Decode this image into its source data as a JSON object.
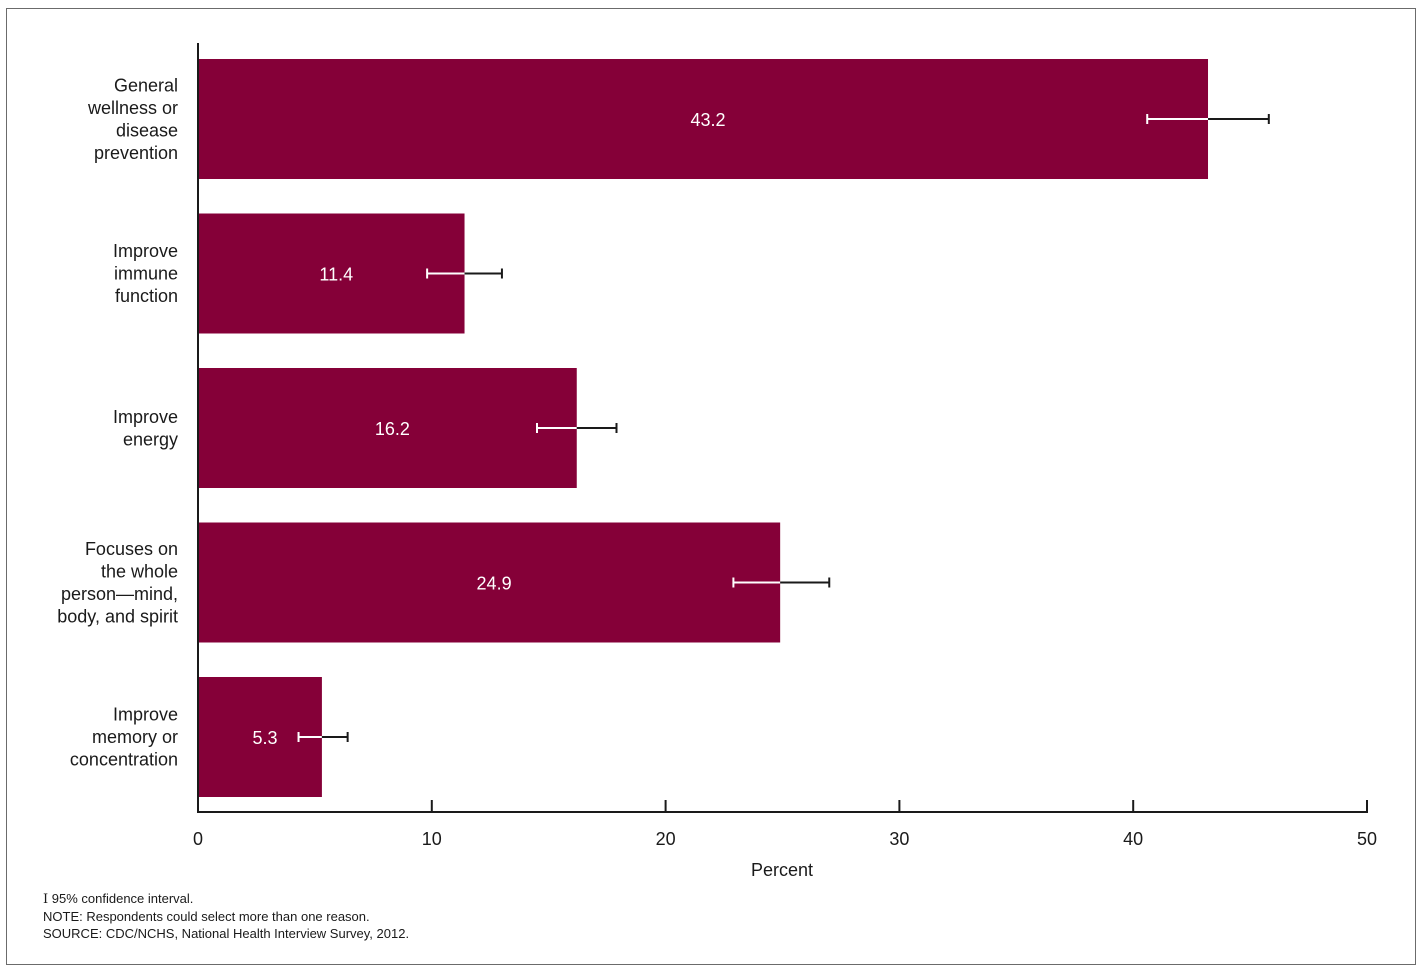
{
  "chart_data": {
    "type": "bar",
    "orientation": "horizontal",
    "categories": [
      [
        "General",
        "wellness or",
        "disease",
        "prevention"
      ],
      [
        "Improve",
        "immune",
        "function"
      ],
      [
        "Improve",
        "energy"
      ],
      [
        "Focuses on",
        "the whole",
        "person—mind,",
        "body, and spirit"
      ],
      [
        "Improve",
        "memory or",
        "concentration"
      ]
    ],
    "values": [
      43.2,
      11.4,
      16.2,
      24.9,
      5.3
    ],
    "value_labels": [
      "43.2",
      "11.4",
      "16.2",
      "24.9",
      "5.3"
    ],
    "ci_low": [
      40.6,
      9.8,
      14.5,
      22.9,
      4.3
    ],
    "ci_high": [
      45.8,
      13.0,
      17.9,
      27.0,
      6.4
    ],
    "xlabel": "Percent",
    "xlim": [
      0,
      50
    ],
    "xticks": [
      "0",
      "10",
      "20",
      "30",
      "40",
      "50"
    ],
    "grid": false,
    "colors": {
      "bar": "#850038",
      "axis": "#1a1a1a",
      "label": "#1a1a1a",
      "value_text": "#ffffff",
      "ci_inside": "#ffffff",
      "ci_outside": "#1a1a1a"
    }
  },
  "footnotes": {
    "ci_symbol": "I",
    "ci_text": "95% confidence interval.",
    "note": "NOTE: Respondents could select more than one reason.",
    "source": "SOURCE: CDC/NCHS, National Health Interview Survey, 2012."
  }
}
